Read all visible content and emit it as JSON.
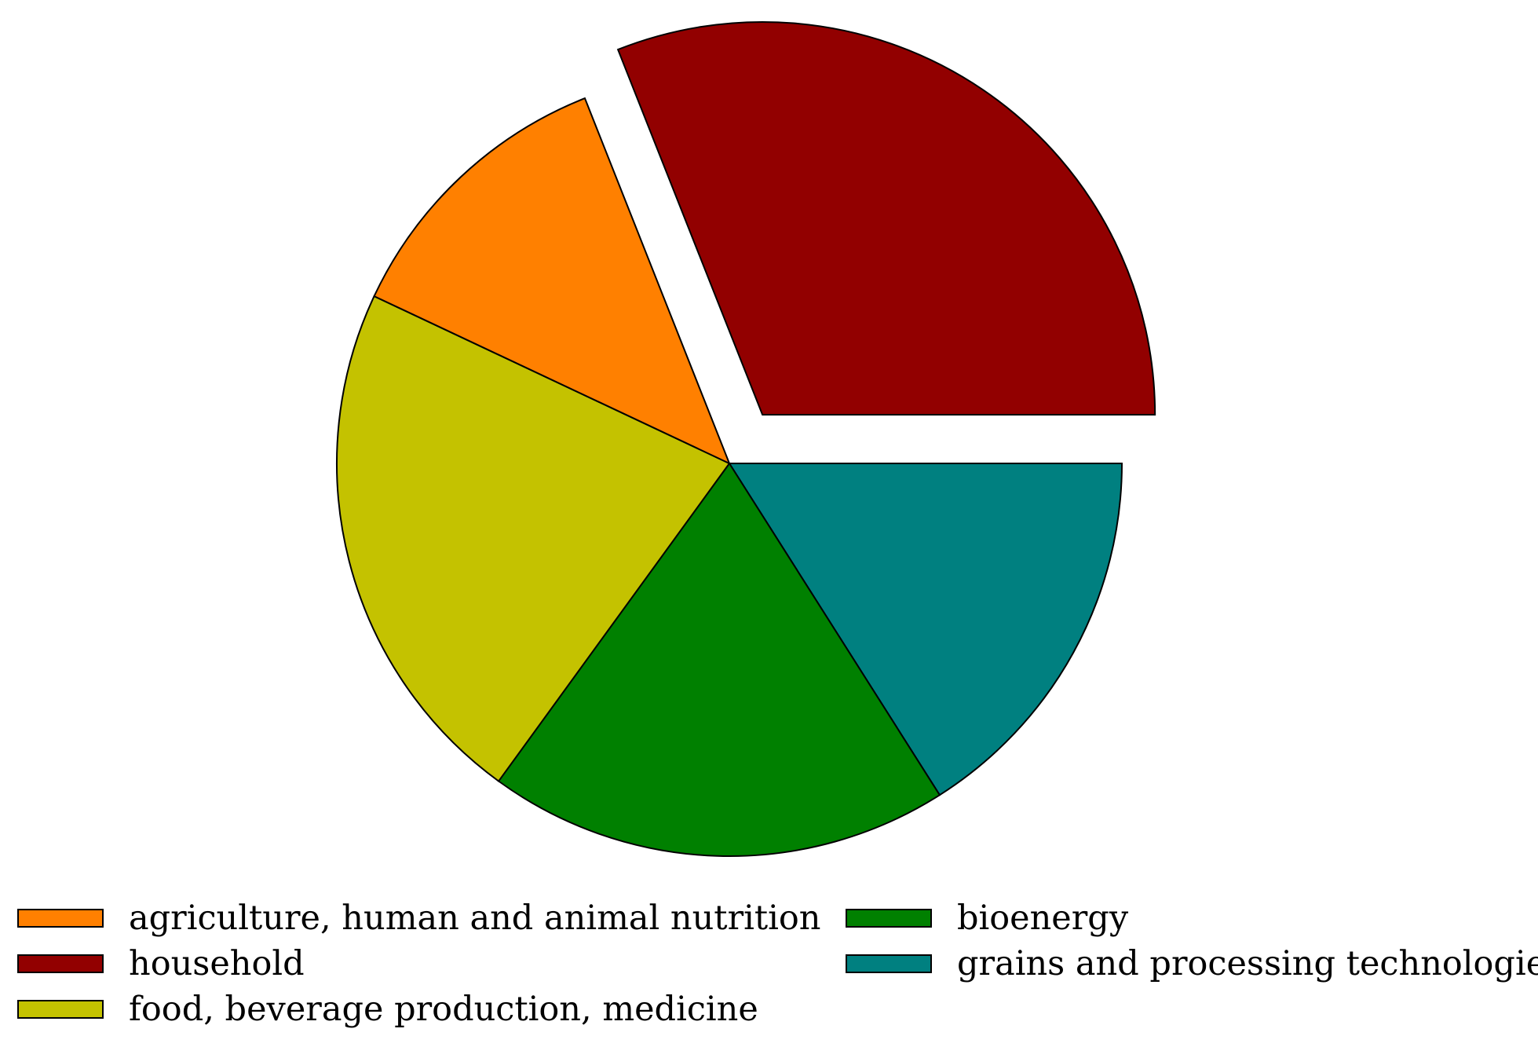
{
  "chart_data": {
    "type": "pie",
    "title": "",
    "slices": [
      {
        "label": "household",
        "value": 31,
        "color": "#920000",
        "exploded": true
      },
      {
        "label": "grains and processing technologies",
        "value": 16,
        "color": "#008080",
        "exploded": false
      },
      {
        "label": "bioenergy",
        "value": 19,
        "color": "#008000",
        "exploded": false
      },
      {
        "label": "food, beverage production, medicine",
        "value": 22,
        "color": "#c4c200",
        "exploded": false
      },
      {
        "label": "agriculture, human and animal nutrition",
        "value": 12,
        "color": "#ff8000",
        "exploded": false
      }
    ],
    "legend": {
      "position": "bottom",
      "entries": [
        {
          "label": "agriculture, human and animal nutrition",
          "color": "#ff8000"
        },
        {
          "label": "bioenergy",
          "color": "#008000"
        },
        {
          "label": "household",
          "color": "#920000"
        },
        {
          "label": "grains and processing technologies",
          "color": "#008080"
        },
        {
          "label": "food, beverage production, medicine",
          "color": "#c4c200"
        }
      ]
    }
  }
}
